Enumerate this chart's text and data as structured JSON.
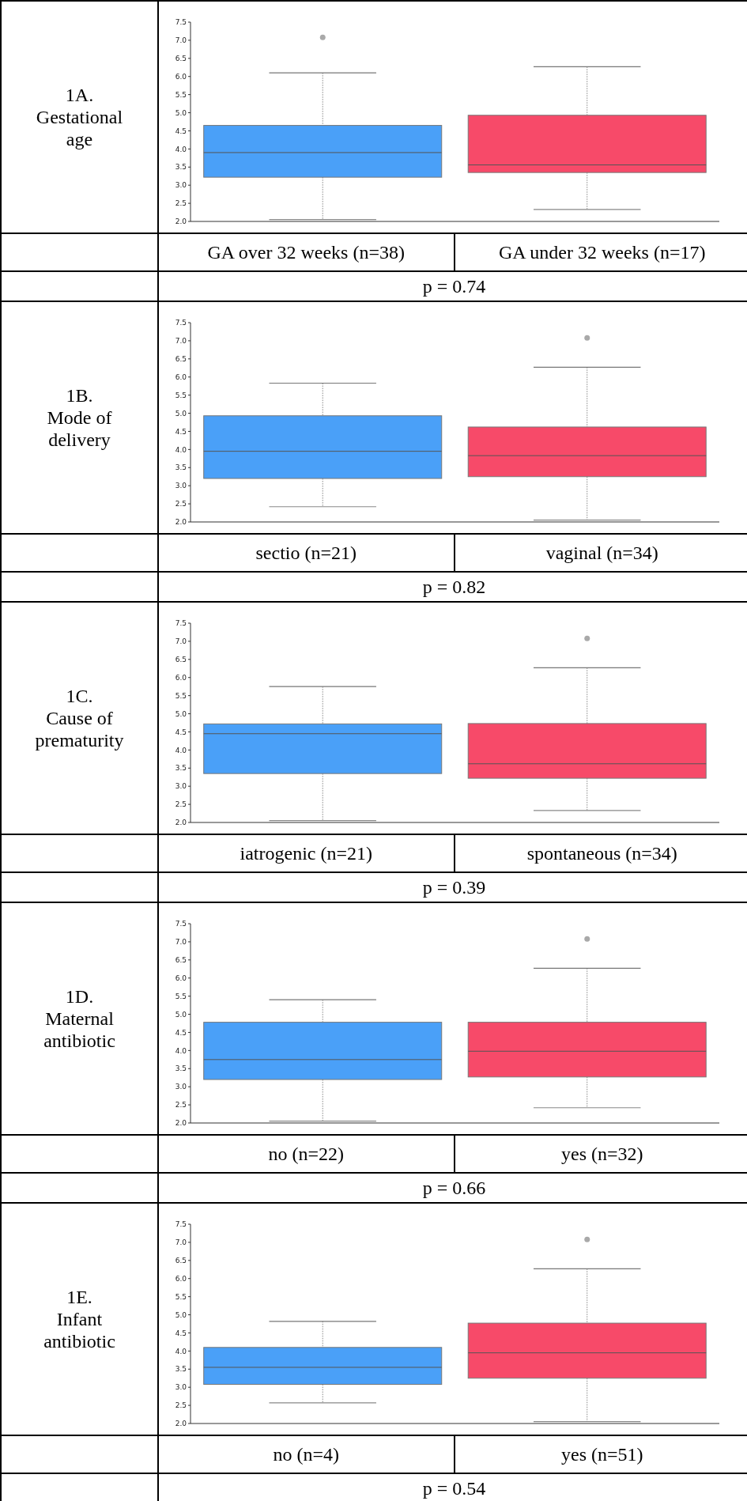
{
  "chart_data": [
    {
      "type": "box",
      "title": "1A.",
      "subtitle": "Gestational age",
      "categories": [
        "GA over 32 weeks (n=38)",
        "GA under 32 weeks (n=17)"
      ],
      "colors": [
        "#4aa0f8",
        "#f74a69"
      ],
      "boxes": [
        {
          "low": 2.05,
          "q1": 3.22,
          "median": 3.9,
          "q3": 4.65,
          "high": 6.1,
          "outliers": [
            7.08
          ]
        },
        {
          "low": 2.33,
          "q1": 3.35,
          "median": 3.56,
          "q3": 4.93,
          "high": 6.27
        }
      ],
      "ylim": [
        2,
        7.5
      ],
      "yticks": [
        {
          "value": 2,
          "label": "2.0"
        },
        {
          "value": 2.5,
          "label": "2.5"
        },
        {
          "value": 3,
          "label": "3.0"
        },
        {
          "value": 3.5,
          "label": "3.5"
        },
        {
          "value": 4,
          "label": "4.0"
        },
        {
          "value": 4.5,
          "label": "4.5"
        },
        {
          "value": 5,
          "label": "5.0"
        },
        {
          "value": 5.5,
          "label": "5.5"
        },
        {
          "value": 6,
          "label": "6.0"
        },
        {
          "value": 6.5,
          "label": "6.5"
        },
        {
          "value": 7,
          "label": "7.0"
        },
        {
          "value": 7.5,
          "label": "7.5"
        }
      ],
      "annotations": [
        "p = 0.74"
      ]
    },
    {
      "type": "box",
      "title": "1B.",
      "subtitle": "Mode of delivery",
      "categories": [
        "sectio (n=21)",
        "vaginal (n=34)"
      ],
      "colors": [
        "#4aa0f8",
        "#f74a69"
      ],
      "boxes": [
        {
          "low": 2.42,
          "q1": 3.2,
          "median": 3.95,
          "q3": 4.93,
          "high": 5.83
        },
        {
          "low": 2.05,
          "q1": 3.25,
          "median": 3.83,
          "q3": 4.62,
          "high": 6.27,
          "outliers": [
            7.08
          ]
        }
      ],
      "ylim": [
        2,
        7.5
      ],
      "yticks": [
        {
          "value": 2,
          "label": "2.0"
        },
        {
          "value": 2.5,
          "label": "2.5"
        },
        {
          "value": 3,
          "label": "3.0"
        },
        {
          "value": 3.5,
          "label": "3.5"
        },
        {
          "value": 4,
          "label": "4.0"
        },
        {
          "value": 4.5,
          "label": "4.5"
        },
        {
          "value": 5,
          "label": "5.0"
        },
        {
          "value": 5.5,
          "label": "5.5"
        },
        {
          "value": 6,
          "label": "6.0"
        },
        {
          "value": 6.5,
          "label": "6.5"
        },
        {
          "value": 7,
          "label": "7.0"
        },
        {
          "value": 7.5,
          "label": "7.5"
        }
      ],
      "annotations": [
        "p = 0.82"
      ]
    },
    {
      "type": "box",
      "title": "1C.",
      "subtitle": "Cause of prematurity",
      "categories": [
        "iatrogenic (n=21)",
        "spontaneous (n=34)"
      ],
      "colors": [
        "#4aa0f8",
        "#f74a69"
      ],
      "boxes": [
        {
          "low": 2.05,
          "q1": 3.35,
          "median": 4.45,
          "q3": 4.72,
          "high": 5.75
        },
        {
          "low": 2.33,
          "q1": 3.22,
          "median": 3.62,
          "q3": 4.73,
          "high": 6.27,
          "outliers": [
            7.08
          ]
        }
      ],
      "ylim": [
        2,
        7.5
      ],
      "yticks": [
        {
          "value": 2,
          "label": "2.0"
        },
        {
          "value": 2.5,
          "label": "2.5"
        },
        {
          "value": 3,
          "label": "3.0"
        },
        {
          "value": 3.5,
          "label": "3.5"
        },
        {
          "value": 4,
          "label": "4.0"
        },
        {
          "value": 4.5,
          "label": "4.5"
        },
        {
          "value": 5,
          "label": "5.0"
        },
        {
          "value": 5.5,
          "label": "5.5"
        },
        {
          "value": 6,
          "label": "6.0"
        },
        {
          "value": 6.5,
          "label": "6.5"
        },
        {
          "value": 7,
          "label": "7.0"
        },
        {
          "value": 7.5,
          "label": "7.5"
        }
      ],
      "annotations": [
        "p = 0.39"
      ]
    },
    {
      "type": "box",
      "title": "1D.",
      "subtitle": "Maternal antibiotic",
      "categories": [
        "no (n=22)",
        "yes (n=32)"
      ],
      "colors": [
        "#4aa0f8",
        "#f74a69"
      ],
      "boxes": [
        {
          "low": 2.05,
          "q1": 3.2,
          "median": 3.75,
          "q3": 4.78,
          "high": 5.4
        },
        {
          "low": 2.42,
          "q1": 3.27,
          "median": 3.98,
          "q3": 4.78,
          "high": 6.27,
          "outliers": [
            7.08
          ]
        }
      ],
      "ylim": [
        2,
        7.5
      ],
      "yticks": [
        {
          "value": 2,
          "label": "2.0"
        },
        {
          "value": 2.5,
          "label": "2.5"
        },
        {
          "value": 3,
          "label": "3.0"
        },
        {
          "value": 3.5,
          "label": "3.5"
        },
        {
          "value": 4,
          "label": "4.0"
        },
        {
          "value": 4.5,
          "label": "4.5"
        },
        {
          "value": 5,
          "label": "5.0"
        },
        {
          "value": 5.5,
          "label": "5.5"
        },
        {
          "value": 6,
          "label": "6.0"
        },
        {
          "value": 6.5,
          "label": "6.5"
        },
        {
          "value": 7,
          "label": "7.0"
        },
        {
          "value": 7.5,
          "label": "7.5"
        }
      ],
      "annotations": [
        "p = 0.66"
      ]
    },
    {
      "type": "box",
      "title": "1E.",
      "subtitle": "Infant antibiotic",
      "categories": [
        "no (n=4)",
        "yes (n=51)"
      ],
      "colors": [
        "#4aa0f8",
        "#f74a69"
      ],
      "boxes": [
        {
          "low": 2.57,
          "q1": 3.08,
          "median": 3.55,
          "q3": 4.1,
          "high": 4.82
        },
        {
          "low": 2.05,
          "q1": 3.25,
          "median": 3.95,
          "q3": 4.77,
          "high": 6.27,
          "outliers": [
            7.08
          ]
        }
      ],
      "ylim": [
        2,
        7.5
      ],
      "yticks": [
        {
          "value": 2,
          "label": "2.0"
        },
        {
          "value": 2.5,
          "label": "2.5"
        },
        {
          "value": 3,
          "label": "3.0"
        },
        {
          "value": 3.5,
          "label": "3.5"
        },
        {
          "value": 4,
          "label": "4.0"
        },
        {
          "value": 4.5,
          "label": "4.5"
        },
        {
          "value": 5,
          "label": "5.0"
        },
        {
          "value": 5.5,
          "label": "5.5"
        },
        {
          "value": 6,
          "label": "6.0"
        },
        {
          "value": 6.5,
          "label": "6.5"
        },
        {
          "value": 7,
          "label": "7.0"
        },
        {
          "value": 7.5,
          "label": "7.5"
        }
      ],
      "annotations": [
        "p = 0.54"
      ]
    }
  ]
}
